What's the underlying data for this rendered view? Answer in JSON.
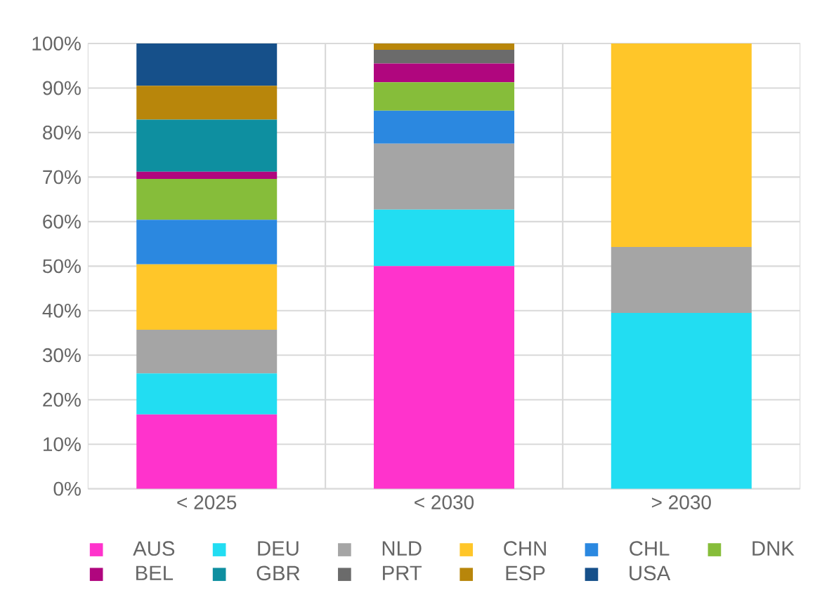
{
  "chart_data": {
    "type": "bar",
    "stacked": true,
    "categories": [
      "< 2025",
      "< 2030",
      "> 2030"
    ],
    "series": [
      {
        "name": "AUS",
        "color": "#ff33cc",
        "values": [
          16.7,
          50.0,
          null
        ]
      },
      {
        "name": "DEU",
        "color": "#22ddf2",
        "values": [
          9.2,
          12.7,
          39.5
        ]
      },
      {
        "name": "NLD",
        "color": "#a5a5a5",
        "values": [
          9.8,
          14.8,
          14.8
        ]
      },
      {
        "name": "CHN",
        "color": "#ffc629",
        "values": [
          14.7,
          null,
          45.7
        ]
      },
      {
        "name": "CHL",
        "color": "#2b88e0",
        "values": [
          10.0,
          7.4,
          null
        ]
      },
      {
        "name": "DNK",
        "color": "#86bd3a",
        "values": [
          9.2,
          6.4,
          null
        ]
      },
      {
        "name": "BEL",
        "color": "#b0067e",
        "values": [
          1.6,
          4.2,
          null
        ]
      },
      {
        "name": "GBR",
        "color": "#0e8fa0",
        "values": [
          11.7,
          null,
          null
        ]
      },
      {
        "name": "PRT",
        "color": "#6b6b6b",
        "values": [
          null,
          3.1,
          null
        ]
      },
      {
        "name": "ESP",
        "color": "#b8860b",
        "values": [
          7.6,
          1.4,
          null
        ]
      },
      {
        "name": "USA",
        "color": "#16508a",
        "values": [
          9.5,
          null,
          null
        ]
      }
    ],
    "ylim": [
      0,
      100
    ],
    "yticks": [
      {
        "value": 0,
        "label": "0%"
      },
      {
        "value": 10,
        "label": "10%"
      },
      {
        "value": 20,
        "label": "20%"
      },
      {
        "value": 30,
        "label": "30%"
      },
      {
        "value": 40,
        "label": "40%"
      },
      {
        "value": 50,
        "label": "50%"
      },
      {
        "value": 60,
        "label": "60%"
      },
      {
        "value": 70,
        "label": "70%"
      },
      {
        "value": 80,
        "label": "80%"
      },
      {
        "value": 90,
        "label": "90%"
      },
      {
        "value": 100,
        "label": "100%"
      }
    ],
    "grid": true,
    "legend": "bottom"
  }
}
